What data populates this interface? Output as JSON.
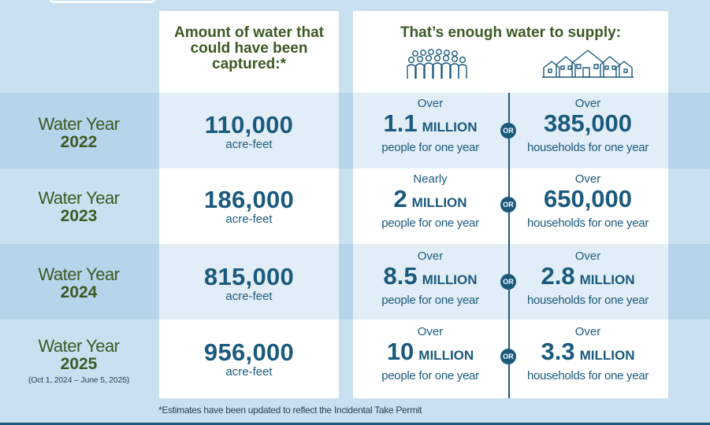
{
  "header": {
    "amount_title": "Amount of water that could have been captured:*",
    "supply_title": "That’s enough water to supply:"
  },
  "icons": {
    "people": "people-group-icon",
    "houses": "houses-icon"
  },
  "rows": [
    {
      "label": "Water Year",
      "year": "2022",
      "subtitle": "",
      "amount": "110,000",
      "amount_unit": "acre-feet",
      "people_pre": "Over",
      "people_num": "1.1",
      "people_mag": "MILLION",
      "people_post": "people for one year",
      "or": "OR",
      "house_pre": "Over",
      "house_num": "385,000",
      "house_mag": "",
      "house_post": "households for one year"
    },
    {
      "label": "Water Year",
      "year": "2023",
      "subtitle": "",
      "amount": "186,000",
      "amount_unit": "acre-feet",
      "people_pre": "Nearly",
      "people_num": "2",
      "people_mag": "MILLION",
      "people_post": "people for one year",
      "or": "OR",
      "house_pre": "Over",
      "house_num": "650,000",
      "house_mag": "",
      "house_post": "households for one year"
    },
    {
      "label": "Water Year",
      "year": "2024",
      "subtitle": "",
      "amount": "815,000",
      "amount_unit": "acre-feet",
      "people_pre": "Over",
      "people_num": "8.5",
      "people_mag": "MILLION",
      "people_post": "people for one year",
      "or": "OR",
      "house_pre": "Over",
      "house_num": "2.8",
      "house_mag": "MILLION",
      "house_post": "households for one year"
    },
    {
      "label": "Water Year",
      "year": "2025",
      "subtitle": "(Oct 1, 2024 – June 5, 2025)",
      "amount": "956,000",
      "amount_unit": "acre-feet",
      "people_pre": "Over",
      "people_num": "10",
      "people_mag": "MILLION",
      "people_post": "people for one year",
      "or": "OR",
      "house_pre": "Over",
      "house_num": "3.3",
      "house_mag": "MILLION",
      "house_post": "households for one year"
    }
  ],
  "footnote": "*Estimates have been updated to reflect the Incidental Take Permit",
  "colors": {
    "background": "#c9e0f0",
    "band_dark": "#b6d4ea",
    "panel": "#ffffff",
    "panel_tint": "#e2eef7",
    "accent_blue": "#1b5a7d",
    "label_green": "#3c5a24"
  }
}
